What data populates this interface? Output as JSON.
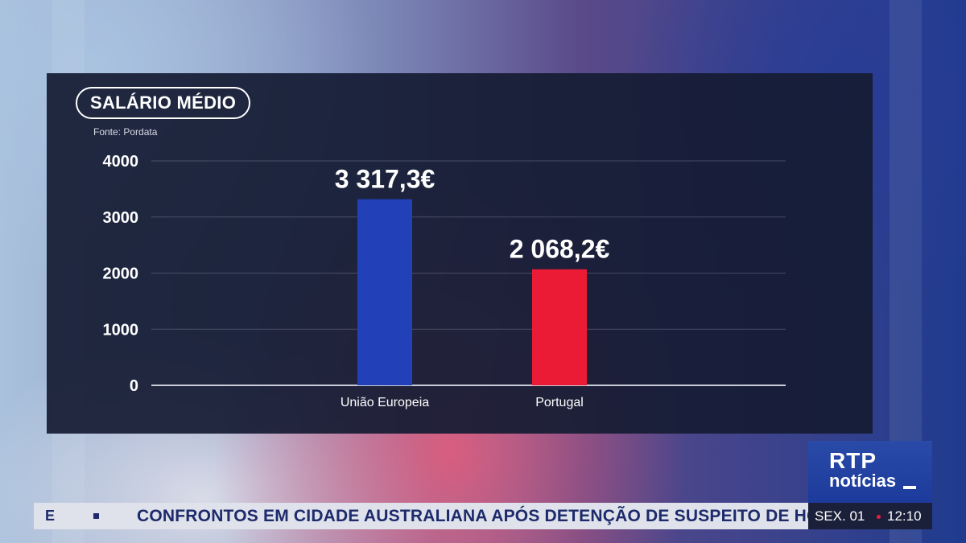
{
  "panel": {
    "title": "SALÁRIO MÉDIO",
    "source": "Fonte: Pordata"
  },
  "chart_data": {
    "type": "bar",
    "categories": [
      "União Europeia",
      "Portugal"
    ],
    "values": [
      3317.3,
      2068.2
    ],
    "value_labels": [
      "3 317,3€",
      "2 068,2€"
    ],
    "colors": [
      "#2240b8",
      "#ec1b35"
    ],
    "ylim": [
      0,
      4000
    ],
    "yticks": [
      0,
      1000,
      2000,
      3000,
      4000
    ],
    "grid": true,
    "title": "SALÁRIO MÉDIO",
    "xlabel": "",
    "ylabel": ""
  },
  "ticker": {
    "prefix": "E",
    "headline": "CONFRONTOS EM CIDADE AUSTRALIANA APÓS DETENÇÃO DE SUSPEITO DE HOMICÍDIO"
  },
  "logo": {
    "line1": "RTP",
    "line2": "notícias"
  },
  "clock": {
    "date": "SEX. 01",
    "time": "12:10"
  }
}
